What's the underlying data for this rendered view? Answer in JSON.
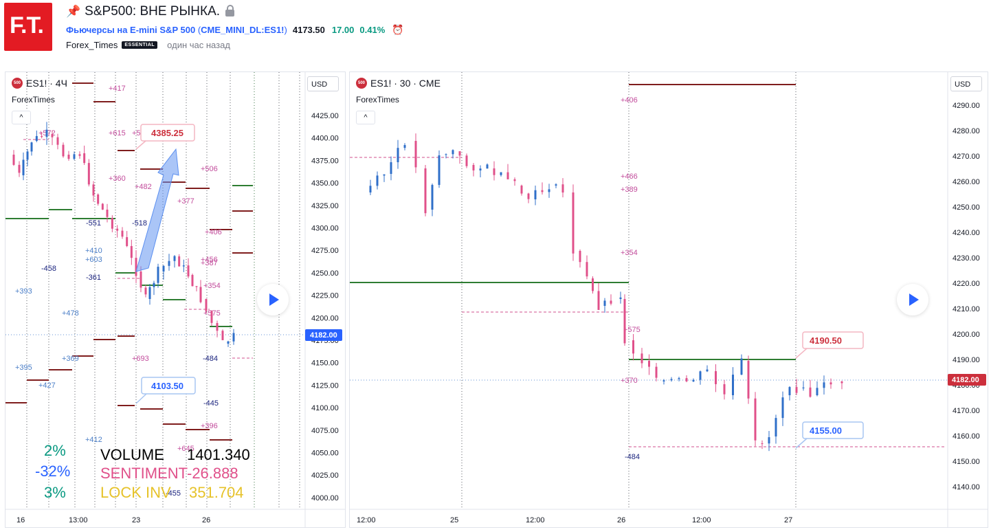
{
  "header": {
    "logo_text": "F.T.",
    "title": "S&P500: ВНЕ РЫНКА.",
    "symbol_name": "Фьючерсы на E-mini S&P 500",
    "symbol_code": "CME_MINI_DL:ES1!",
    "price": "4173.50",
    "change": "17.00",
    "change_pct": "0.41%",
    "author": "Forex_Times",
    "badge": "ESSENTIAL",
    "published": "один час назад",
    "colors": {
      "logo": "#e31b23",
      "link": "#2962ff",
      "up": "#089981"
    }
  },
  "left_panel": {
    "symbol_badge": "500",
    "symbol_label": "ES1! · 4Ч",
    "indicator_label": "ForexTimes",
    "currency": "USD",
    "collapse_glyph": "^",
    "price_scale": [
      "4425.00",
      "4400.00",
      "4375.00",
      "4350.00",
      "4325.00",
      "4300.00",
      "4275.00",
      "4250.00",
      "4225.00",
      "4200.00",
      "4175.00",
      "4150.00",
      "4125.00",
      "4100.00",
      "4075.00",
      "4050.00",
      "4025.00",
      "4000.00"
    ],
    "time_labels": [
      "16",
      "13:00",
      "23",
      "26"
    ],
    "last_price": "4182.00",
    "callout_high": "4385.25",
    "callout_low": "4103.50",
    "level_labels": [
      "+417",
      "+615",
      "+55",
      "+572",
      "+360",
      "+482",
      "+506",
      "+377",
      "-551",
      "-518",
      "+406",
      "+410",
      "+603",
      "-458",
      "-361",
      "+456",
      "+387",
      "+354",
      "+393",
      "+478",
      "+575",
      "-484",
      "+395",
      "+369",
      "+693",
      "+427",
      "-445",
      "+396",
      "+412",
      "+645",
      "-455"
    ],
    "overlay": {
      "pct1": "2%",
      "pct2": "-32%",
      "pct3": "3%",
      "volume_label": "VOLUME",
      "volume_value": "1401.340",
      "sentiment_label": "SENTIMENT",
      "sentiment_value": "-26.888",
      "lock_label": "LOCK INV",
      "lock_value": "351.704"
    }
  },
  "right_panel": {
    "symbol_badge": "500",
    "symbol_label": "ES1! · 30 · CME",
    "indicator_label": "ForexTimes",
    "currency": "USD",
    "collapse_glyph": "^",
    "price_scale": [
      "4290.00",
      "4280.00",
      "4270.00",
      "4260.00",
      "4250.00",
      "4240.00",
      "4230.00",
      "4220.00",
      "4210.00",
      "4200.00",
      "4190.00",
      "4180.00",
      "4170.00",
      "4160.00",
      "4150.00",
      "4140.00"
    ],
    "time_labels": [
      "12:00",
      "25",
      "12:00",
      "26",
      "12:00",
      "27"
    ],
    "last_price": "4182.00",
    "callout_high": "4190.50",
    "callout_low": "4155.00",
    "level_labels": [
      "+406",
      "+466",
      "+389",
      "+354",
      "+575",
      "+370",
      "-484"
    ]
  }
}
